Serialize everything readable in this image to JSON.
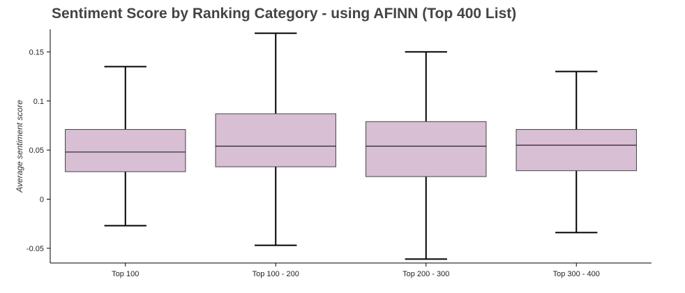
{
  "chart_data": {
    "type": "box",
    "title": "Sentiment Score by Ranking Category - using AFINN (Top 400 List)",
    "xlabel": "",
    "ylabel": "Average sentiment score",
    "ylim": [
      -0.065,
      0.173
    ],
    "yticks": [
      -0.05,
      0,
      0.05,
      0.1,
      0.15
    ],
    "ytick_labels": [
      "-0.05",
      "0",
      "0.05",
      "0.1",
      "0.15"
    ],
    "grid": false,
    "box_color": "#d8bfd4",
    "box_stroke": "#444444",
    "whisker_color": "#000000",
    "categories": [
      "Top 100",
      "Top 100 - 200",
      "Top 200 - 300",
      "Top 300 - 400"
    ],
    "boxes": [
      {
        "category": "Top 100",
        "whisker_low": -0.027,
        "q1": 0.028,
        "median": 0.048,
        "q3": 0.071,
        "whisker_high": 0.135
      },
      {
        "category": "Top 100 - 200",
        "whisker_low": -0.047,
        "q1": 0.033,
        "median": 0.054,
        "q3": 0.087,
        "whisker_high": 0.169
      },
      {
        "category": "Top 200 - 300",
        "whisker_low": -0.061,
        "q1": 0.023,
        "median": 0.054,
        "q3": 0.079,
        "whisker_high": 0.15
      },
      {
        "category": "Top 300 - 400",
        "whisker_low": -0.034,
        "q1": 0.029,
        "median": 0.055,
        "q3": 0.071,
        "whisker_high": 0.13
      }
    ]
  }
}
